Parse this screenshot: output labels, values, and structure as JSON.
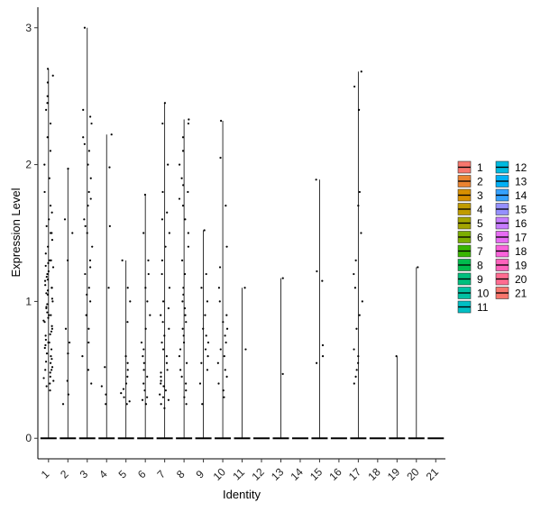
{
  "chart_data": {
    "type": "violin",
    "title": "",
    "xlabel": "Identity",
    "ylabel": "Expression Level",
    "ylim": [
      -0.15,
      3.15
    ],
    "yticks": [
      0,
      1,
      2,
      3
    ],
    "grid": false,
    "legend_placement": "right",
    "categories": [
      "1",
      "2",
      "3",
      "4",
      "5",
      "6",
      "7",
      "8",
      "9",
      "10",
      "11",
      "12",
      "13",
      "14",
      "15",
      "16",
      "17",
      "18",
      "19",
      "20",
      "21"
    ],
    "series": [
      {
        "name": "1",
        "color": "#F8766D",
        "max": 2.7,
        "points": [
          0.35,
          0.38,
          0.4,
          0.42,
          0.45,
          0.48,
          0.5,
          0.52,
          0.55,
          0.58,
          0.6,
          0.62,
          0.65,
          0.68,
          0.7,
          0.72,
          0.75,
          0.78,
          0.8,
          0.82,
          0.85,
          0.88,
          0.9,
          0.92,
          0.95,
          0.98,
          1.0,
          1.02,
          1.05,
          1.08,
          1.1,
          1.12,
          1.15,
          1.18,
          1.2,
          1.22,
          1.25,
          1.28,
          1.3,
          1.35,
          1.4,
          1.45,
          1.5,
          1.55,
          1.6,
          1.65,
          1.7,
          1.8,
          1.9,
          2.0,
          2.1,
          2.2,
          2.3,
          2.4,
          2.45,
          2.5,
          2.6,
          2.65,
          2.7,
          0.44,
          0.56,
          0.66,
          0.76,
          0.86,
          0.96,
          1.06,
          1.16,
          1.26,
          0.5,
          0.7,
          0.9,
          1.1,
          1.3,
          1.5
        ]
      },
      {
        "name": "2",
        "color": "#EA8331",
        "max": 1.97,
        "points": [
          0.25,
          0.32,
          0.42,
          0.62,
          0.7,
          0.8,
          1.3,
          1.5,
          1.6,
          1.97
        ]
      },
      {
        "name": "3",
        "color": "#D89000",
        "max": 3.0,
        "points": [
          0.4,
          0.5,
          0.6,
          0.7,
          0.8,
          0.9,
          1.0,
          1.1,
          1.2,
          1.3,
          1.4,
          1.5,
          1.6,
          1.7,
          1.8,
          1.9,
          2.0,
          2.1,
          2.2,
          2.3,
          2.4,
          3.0,
          1.05,
          1.25,
          1.55,
          1.75,
          2.15,
          2.35
        ]
      },
      {
        "name": "4",
        "color": "#C09B00",
        "max": 2.22,
        "points": [
          0.25,
          0.32,
          0.38,
          0.52,
          1.1,
          1.55,
          1.98,
          2.22
        ]
      },
      {
        "name": "5",
        "color": "#A3A500",
        "max": 1.3,
        "points": [
          0.25,
          0.27,
          0.3,
          0.33,
          0.36,
          0.4,
          0.45,
          0.5,
          0.55,
          0.6,
          0.85,
          1.0,
          1.1,
          1.3
        ]
      },
      {
        "name": "6",
        "color": "#7CAE00",
        "max": 1.78,
        "points": [
          0.25,
          0.28,
          0.3,
          0.35,
          0.4,
          0.45,
          0.5,
          0.55,
          0.6,
          0.65,
          0.7,
          0.8,
          0.9,
          1.0,
          1.1,
          1.2,
          1.3,
          1.5,
          1.78
        ]
      },
      {
        "name": "7",
        "color": "#39B600",
        "max": 2.45,
        "points": [
          0.22,
          0.25,
          0.28,
          0.3,
          0.32,
          0.35,
          0.38,
          0.4,
          0.42,
          0.45,
          0.48,
          0.5,
          0.55,
          0.6,
          0.65,
          0.7,
          0.75,
          0.8,
          0.85,
          0.9,
          0.95,
          1.0,
          1.1,
          1.2,
          1.3,
          1.4,
          1.5,
          1.6,
          1.65,
          1.8,
          2.0,
          2.3,
          2.45
        ]
      },
      {
        "name": "8",
        "color": "#00BB4E",
        "max": 2.33,
        "points": [
          0.25,
          0.3,
          0.35,
          0.4,
          0.45,
          0.5,
          0.55,
          0.6,
          0.65,
          0.7,
          0.75,
          0.8,
          0.85,
          0.9,
          0.95,
          1.0,
          1.05,
          1.1,
          1.2,
          1.3,
          1.4,
          1.5,
          1.6,
          1.7,
          1.8,
          1.9,
          2.0,
          2.1,
          2.2,
          2.3,
          2.33,
          1.75,
          1.85
        ]
      },
      {
        "name": "9",
        "color": "#00BF7D",
        "max": 1.52,
        "points": [
          0.25,
          0.4,
          0.5,
          0.55,
          0.6,
          0.65,
          0.7,
          0.75,
          0.8,
          0.9,
          1.0,
          1.1,
          1.2,
          1.52
        ]
      },
      {
        "name": "10",
        "color": "#00C1A3",
        "max": 2.32,
        "points": [
          0.3,
          0.35,
          0.4,
          0.45,
          0.5,
          0.55,
          0.6,
          0.65,
          0.7,
          0.75,
          0.8,
          0.85,
          0.9,
          1.0,
          1.1,
          1.25,
          1.4,
          1.7,
          2.05,
          2.32
        ]
      },
      {
        "name": "11",
        "color": "#00BFC4",
        "max": 1.1,
        "points": [
          0.65,
          1.1
        ]
      },
      {
        "name": "12",
        "color": "#00BAE0",
        "max": 0.0,
        "points": []
      },
      {
        "name": "13",
        "color": "#00B0F6",
        "max": 1.17,
        "points": [
          0.47,
          1.17
        ]
      },
      {
        "name": "14",
        "color": "#35A2FF",
        "max": 0.0,
        "points": []
      },
      {
        "name": "15",
        "color": "#9590FF",
        "max": 1.89,
        "points": [
          0.55,
          0.6,
          0.68,
          1.15,
          1.22,
          1.89
        ]
      },
      {
        "name": "16",
        "color": "#C77CFF",
        "max": 0.0,
        "points": []
      },
      {
        "name": "17",
        "color": "#E76BF3",
        "max": 2.68,
        "points": [
          0.4,
          0.45,
          0.5,
          0.55,
          0.6,
          0.65,
          0.8,
          0.9,
          1.0,
          1.1,
          1.2,
          1.3,
          1.5,
          1.7,
          1.8,
          2.4,
          2.57,
          2.68
        ]
      },
      {
        "name": "18",
        "color": "#FA62DB",
        "max": 0.0,
        "points": []
      },
      {
        "name": "19",
        "color": "#FF62BC",
        "max": 0.6,
        "points": [
          0.6
        ]
      },
      {
        "name": "20",
        "color": "#FF6C91",
        "max": 1.25,
        "points": [
          1.25
        ]
      },
      {
        "name": "21",
        "color": "#F8766D",
        "max": 0.0,
        "points": []
      }
    ]
  }
}
